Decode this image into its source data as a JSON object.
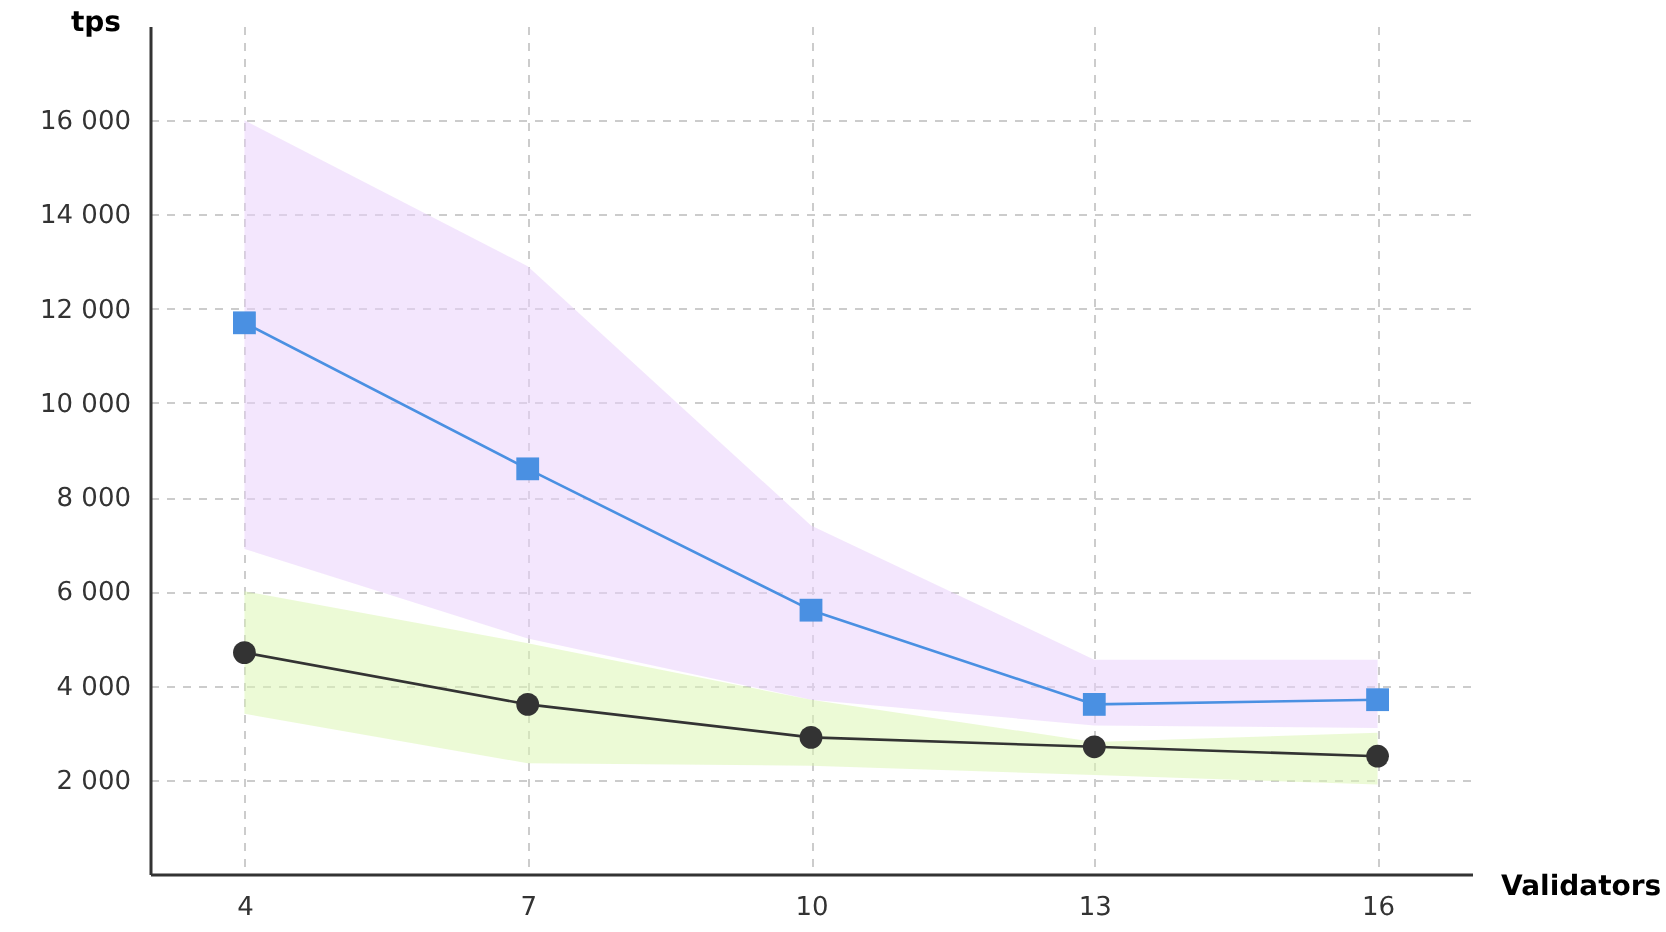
{
  "chart_data": {
    "type": "line",
    "xlabel": "Validators",
    "ylabel": "tps",
    "x": [
      4,
      7,
      10,
      13,
      16
    ],
    "xlim": [
      3,
      17
    ],
    "xticks": [
      4,
      7,
      10,
      13,
      16
    ],
    "ylim": [
      0,
      18000
    ],
    "yticks": [
      2000,
      4000,
      6000,
      8000,
      10000,
      12000,
      14000,
      16000
    ],
    "grid": true,
    "line_style": "solid",
    "series": [
      {
        "color": "#4a90e2",
        "marker": "square",
        "values": [
          11700,
          8600,
          5600,
          3600,
          3700
        ],
        "lower": [
          6900,
          5000,
          3700,
          3150,
          3100
        ],
        "upper": [
          16000,
          12900,
          7400,
          4550,
          4550
        ]
      },
      {
        "color": "#333333",
        "marker": "circle",
        "values": [
          4700,
          3600,
          2900,
          2700,
          2500
        ],
        "lower": [
          3400,
          2350,
          2300,
          2100,
          1900
        ],
        "upper": [
          6000,
          4900,
          3700,
          2800,
          3000
        ]
      }
    ]
  }
}
